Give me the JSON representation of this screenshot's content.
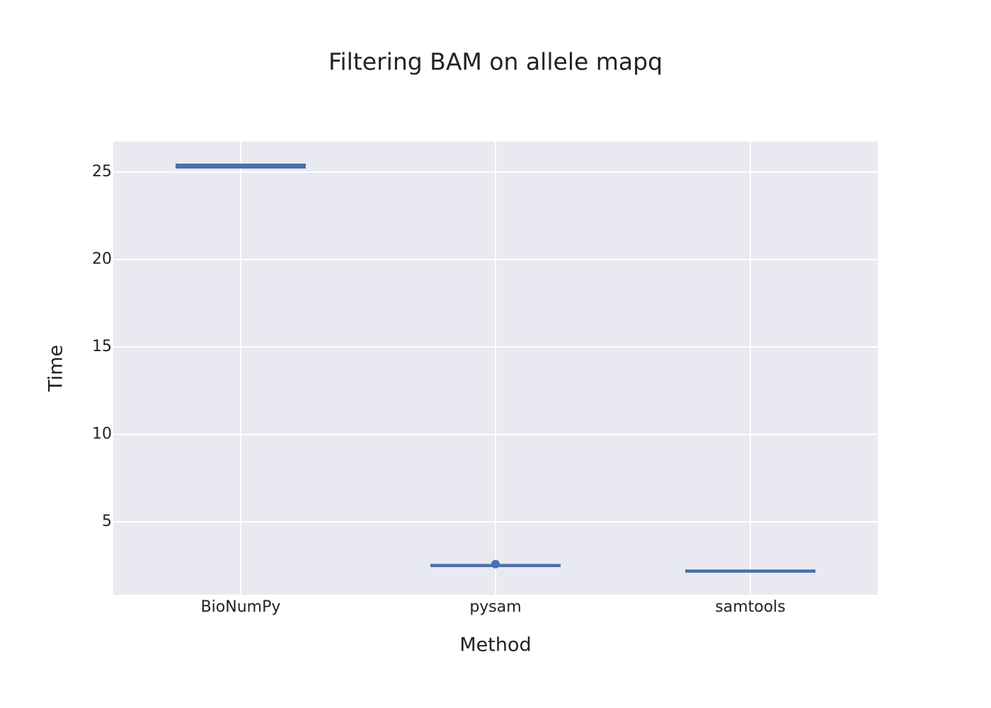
{
  "chart_data": {
    "type": "box",
    "title": "Filtering BAM on allele mapq",
    "x_label": "Method",
    "y_label": "Time",
    "categories": [
      "BioNumPy",
      "pysam",
      "samtools"
    ],
    "min": [
      25.22,
      2.47,
      2.16
    ],
    "q1": [
      25.28,
      2.49,
      2.17
    ],
    "median": [
      25.33,
      2.5,
      2.18
    ],
    "q3": [
      25.4,
      2.51,
      2.19
    ],
    "max": [
      25.45,
      2.53,
      2.2
    ],
    "outliers": [
      [],
      [
        2.58
      ],
      []
    ],
    "color": "#4a6fad",
    "ylim": [
      0.83,
      26.74
    ],
    "yticks": [
      5,
      10,
      15,
      20,
      25
    ],
    "grid": true
  }
}
